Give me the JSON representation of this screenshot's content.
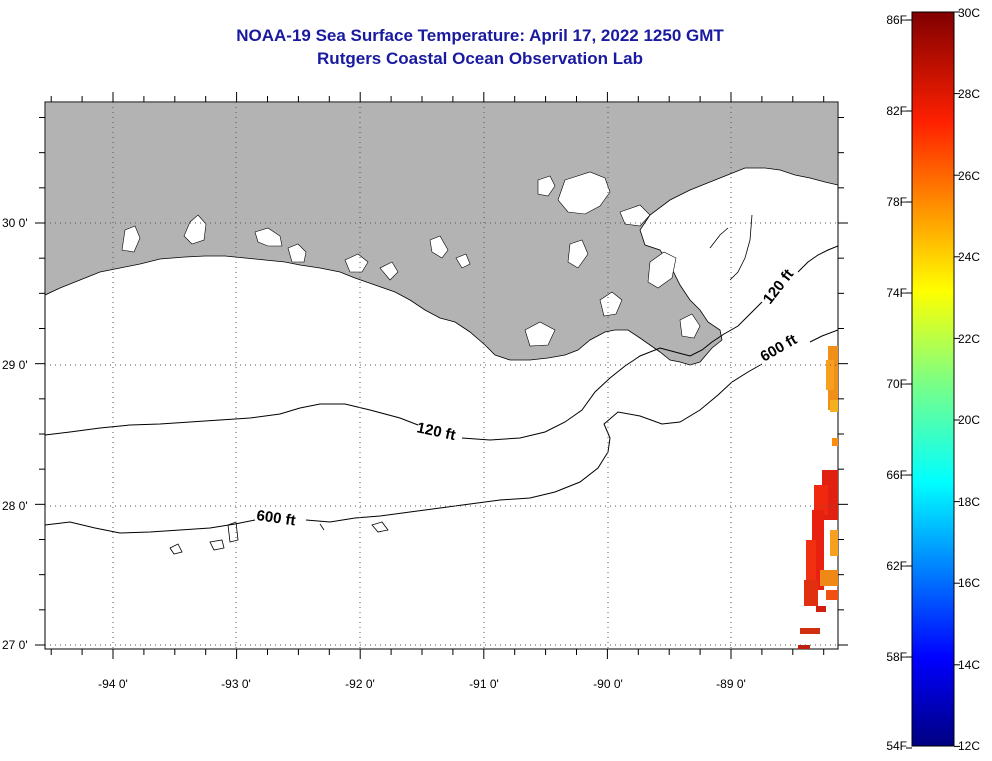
{
  "title": {
    "line1": "NOAA-19 Sea Surface Temperature:  April 17, 2022 1250 GMT",
    "line2": "Rutgers Coastal Ocean Observation Lab"
  },
  "map": {
    "lon_labels": [
      "-94 0'",
      "-93 0'",
      "-92 0'",
      "-91 0'",
      "-90 0'",
      "-89 0'"
    ],
    "lat_labels": [
      "30 0'",
      "29 0'",
      "28 0'",
      "27 0'"
    ],
    "land_color": "#b3b3b3",
    "contour_labels": [
      "120 ft",
      "120 ft",
      "600 ft",
      "600 ft"
    ]
  },
  "colorbar": {
    "f_labels": [
      "86F",
      "82F",
      "78F",
      "74F",
      "70F",
      "66F",
      "62F",
      "58F",
      "54F"
    ],
    "c_labels": [
      "30C",
      "28C",
      "26C",
      "24C",
      "22C",
      "20C",
      "18C",
      "16C",
      "14C",
      "12C"
    ],
    "range_c": [
      12,
      30
    ]
  }
}
